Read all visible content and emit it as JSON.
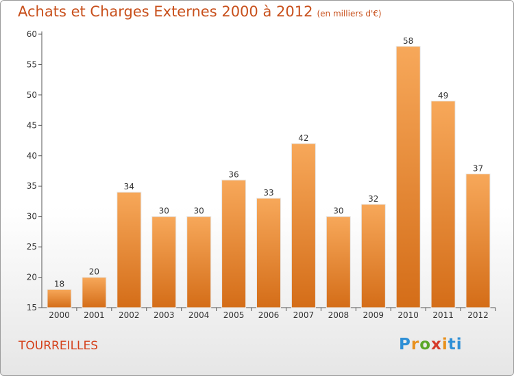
{
  "title": "Achats et Charges Externes 2000 à 2012",
  "subtitle": "(en milliers d'€)",
  "commune": "TOURREILLES",
  "logo": [
    "P",
    "r",
    "o",
    "x",
    "i",
    "ti"
  ],
  "colors": {
    "bar_light": "#f7a85a",
    "bar_dark": "#d46d18",
    "title": "#c8501c",
    "axis": "#555555",
    "grid": "#d0d0d0"
  },
  "chart_data": {
    "type": "bar",
    "title": "Achats et Charges Externes 2000 à 2012",
    "subtitle": "(en milliers d'€)",
    "xlabel": "",
    "ylabel": "",
    "categories": [
      "2000",
      "2001",
      "2002",
      "2003",
      "2004",
      "2005",
      "2006",
      "2007",
      "2008",
      "2009",
      "2010",
      "2011",
      "2012"
    ],
    "values": [
      18,
      20,
      34,
      30,
      30,
      36,
      33,
      42,
      30,
      32,
      58,
      49,
      37
    ],
    "ylim": [
      15,
      60
    ],
    "yticks": [
      15,
      20,
      25,
      30,
      35,
      40,
      45,
      50,
      55,
      60
    ],
    "grid": false,
    "data_labels": true
  }
}
